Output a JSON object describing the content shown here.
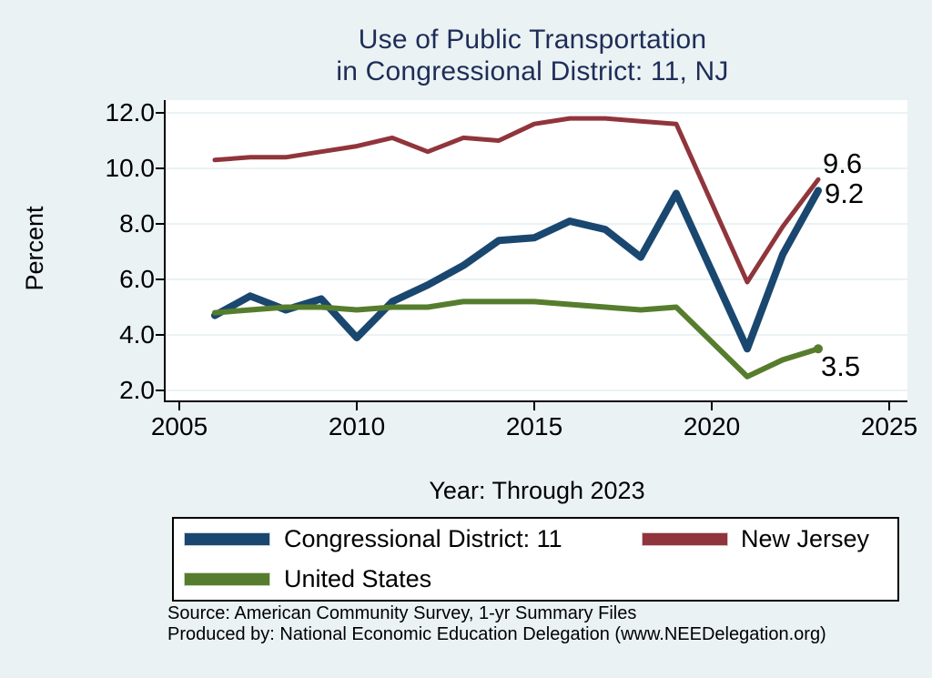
{
  "title": {
    "line1": "Use of Public Transportation",
    "line2": "in Congressional District: 11, NJ"
  },
  "axes": {
    "y_title": "Percent",
    "x_title": "Year: Through 2023",
    "y_ticks": [
      "12.0",
      "10.0",
      "8.0",
      "6.0",
      "4.0",
      "2.0"
    ],
    "x_ticks": [
      "2005",
      "2010",
      "2015",
      "2020",
      "2025"
    ]
  },
  "end_labels": [
    {
      "series": "New Jersey",
      "text": "9.6"
    },
    {
      "series": "Congressional District: 11",
      "text": "9.2"
    },
    {
      "series": "United States",
      "text": "3.5"
    }
  ],
  "legend": {
    "items": [
      {
        "label": "Congressional District: 11",
        "color": "#1a476f"
      },
      {
        "label": "New Jersey",
        "color": "#90353b"
      },
      {
        "label": "United States",
        "color": "#567d2d"
      }
    ]
  },
  "footer": {
    "source": "Source: American Community Survey, 1-yr Summary Files",
    "produced_by": "Produced by: National Economic Education Delegation (www.NEEDelegation.org)"
  },
  "colors": {
    "background": "#eaf2f3",
    "plot_background": "#ffffff",
    "gridline": "#e4eef1",
    "axis": "#000000",
    "title_text": "#1e2d58",
    "district": "#1a476f",
    "new_jersey": "#90353b",
    "united_states": "#567d2d"
  },
  "chart_data": {
    "type": "line",
    "title": "Use of Public Transportation in Congressional District: 11, NJ",
    "xlabel": "Year: Through 2023",
    "ylabel": "Percent",
    "xlim": [
      2004.6,
      2025.5
    ],
    "ylim": [
      1.6,
      12.5
    ],
    "y_tick_values": [
      12,
      10,
      8,
      6,
      4,
      2
    ],
    "x_tick_values": [
      2005,
      2010,
      2015,
      2020,
      2025
    ],
    "grid": true,
    "legend_position": "bottom",
    "note": "No data point for 2020; lines connect 2019 directly to 2021",
    "x": [
      2006,
      2007,
      2008,
      2009,
      2010,
      2011,
      2012,
      2013,
      2014,
      2015,
      2016,
      2017,
      2018,
      2019,
      2021,
      2022,
      2023
    ],
    "series": [
      {
        "name": "Congressional District: 11",
        "color": "#1a476f",
        "stroke_width": 8,
        "values": [
          4.7,
          5.4,
          4.9,
          5.3,
          3.9,
          5.2,
          5.8,
          6.5,
          7.4,
          7.5,
          8.1,
          7.8,
          6.8,
          9.1,
          3.5,
          6.9,
          9.2
        ]
      },
      {
        "name": "New Jersey",
        "color": "#90353b",
        "stroke_width": 5,
        "values": [
          10.3,
          10.4,
          10.4,
          10.6,
          10.8,
          11.1,
          10.6,
          11.1,
          11.0,
          11.6,
          11.8,
          11.8,
          11.7,
          11.6,
          5.9,
          7.9,
          9.6
        ]
      },
      {
        "name": "United States",
        "color": "#567d2d",
        "stroke_width": 6,
        "end_marker": true,
        "values": [
          4.8,
          4.9,
          5.0,
          5.0,
          4.9,
          5.0,
          5.0,
          5.2,
          5.2,
          5.2,
          5.1,
          5.0,
          4.9,
          5.0,
          2.5,
          3.1,
          3.5
        ]
      }
    ]
  }
}
